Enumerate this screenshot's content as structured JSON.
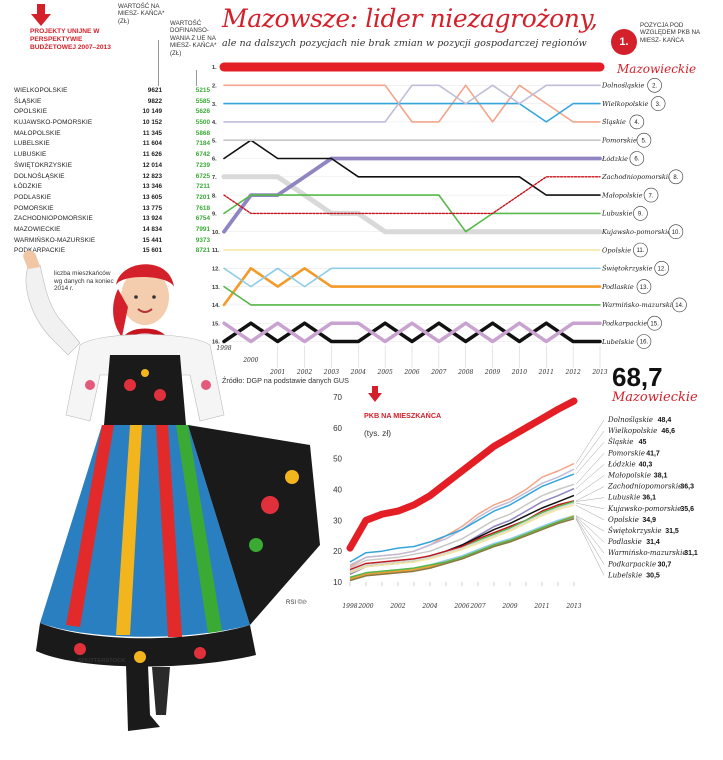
{
  "headline": "Mazowsze: lider niezagrożony,",
  "subheadline": "ale na dalszych pozycjach nie brak zmian w pozycji gospodarczej regionów",
  "legend": {
    "badge": "1.",
    "text": "POZYCJA POD WZGLĘDEM PKB NA MIESZ- KAŃCA"
  },
  "table": {
    "title": "PROJEKTY UNIJNE W PERSPEKTYWIE BUDŻETOWEJ 2007–2013",
    "col1_header": "WARTOŚĆ NA MIESZ- KAŃCA* (ZŁ)",
    "col2_header": "WARTOŚĆ DOFINANSO- WANIA Z UE NA MIESZ- KAŃCA* (ZŁ)",
    "rows": [
      {
        "name": "WIELKOPOLSKIE",
        "value": "9621",
        "eu": "5215"
      },
      {
        "name": "ŚLĄSKIE",
        "value": "9822",
        "eu": "5585"
      },
      {
        "name": "OPOLSKIE",
        "value": "10 149",
        "eu": "5626"
      },
      {
        "name": "KUJAWSKO-POMORSKIE",
        "value": "10 152",
        "eu": "5500"
      },
      {
        "name": "MAŁOPOLSKIE",
        "value": "11 345",
        "eu": "5868"
      },
      {
        "name": "LUBELSKIE",
        "value": "11 604",
        "eu": "7184"
      },
      {
        "name": "LUBUSKIE",
        "value": "11 626",
        "eu": "6742"
      },
      {
        "name": "ŚWIĘTOKRZYSKIE",
        "value": "12 014",
        "eu": "7239"
      },
      {
        "name": "DOLNOŚLĄSKIE",
        "value": "12 823",
        "eu": "6725"
      },
      {
        "name": "ŁÓDZKIE",
        "value": "13 346",
        "eu": "7211"
      },
      {
        "name": "PODLASKIE",
        "value": "13 605",
        "eu": "7201"
      },
      {
        "name": "POMORSKIE",
        "value": "13 775",
        "eu": "7618"
      },
      {
        "name": "ZACHODNIOPOMORSKIE",
        "value": "13 924",
        "eu": "6754"
      },
      {
        "name": "MAZOWIECKIE",
        "value": "14 834",
        "eu": "7991"
      },
      {
        "name": "WARMIŃSKO-MAZURSKIE",
        "value": "15 441",
        "eu": "9373"
      },
      {
        "name": "PODKARPACKIE",
        "value": "15 601",
        "eu": "8721"
      }
    ],
    "note_star": "*",
    "note": "liczba mieszkańców wg danych na koniec 2014 r."
  },
  "credits": {
    "photo": "SHUTTERSTOCK",
    "graphic": "RSI ©℗"
  },
  "colors": {
    "red": "#d4202a",
    "green": "#3aaa35"
  },
  "chart_data": [
    {
      "type": "line",
      "years": [
        "1998",
        "2000",
        "2001",
        "2002",
        "2003",
        "2004",
        "2005",
        "2006",
        "2007",
        "2008",
        "2009",
        "2010",
        "2011",
        "2012",
        "2013"
      ],
      "ranks": [
        "1.",
        "2.",
        "3.",
        "4.",
        "5.",
        "6.",
        "7.",
        "8.",
        "9.",
        "10.",
        "11.",
        "12.",
        "13.",
        "14.",
        "15.",
        "16."
      ],
      "source": "Źródło: DGP na podstawie danych GUS",
      "series": [
        {
          "name": "Mazowieckie",
          "final_rank": "1.",
          "color": "#e31e24",
          "width": 9,
          "values": [
            1,
            1,
            1,
            1,
            1,
            1,
            1,
            1,
            1,
            1,
            1,
            1,
            1,
            1,
            1
          ]
        },
        {
          "name": "Dolnośląskie",
          "final_rank": "2.",
          "color": "#c0bdd9",
          "width": 1.6,
          "values": [
            4,
            4,
            4,
            4,
            4,
            4,
            4,
            2,
            2,
            3,
            2,
            3,
            2,
            2,
            2
          ]
        },
        {
          "name": "Wielkopolskie",
          "final_rank": "3.",
          "color": "#34a4dc",
          "width": 1.6,
          "values": [
            3,
            3,
            3,
            3,
            3,
            3,
            3,
            3,
            3,
            3,
            3,
            3,
            4,
            3,
            3
          ]
        },
        {
          "name": "Śląskie",
          "final_rank": "4.",
          "color": "#f2a58a",
          "width": 1.6,
          "values": [
            2,
            2,
            2,
            2,
            2,
            2,
            2,
            4,
            4,
            2,
            4,
            2,
            3,
            4,
            4
          ]
        },
        {
          "name": "Pomorskie",
          "final_rank": "5.",
          "color": "#c8c8c8",
          "width": 1.6,
          "values": [
            5,
            5,
            5,
            5,
            5,
            5,
            5,
            5,
            5,
            5,
            5,
            5,
            5,
            5,
            5
          ]
        },
        {
          "name": "Łódzkie",
          "final_rank": "6.",
          "color": "#9085c2",
          "width": 3.8,
          "values": [
            10,
            8,
            8,
            7,
            6,
            6,
            6,
            6,
            6,
            6,
            6,
            6,
            6,
            6,
            6
          ]
        },
        {
          "name": "Małopolskie",
          "final_rank": "7.",
          "color": "#111111",
          "width": 1.6,
          "values": [
            6,
            5,
            6,
            6,
            6,
            7,
            7,
            7,
            7,
            7,
            7,
            7,
            8,
            8,
            8
          ]
        },
        {
          "name": "Zachodniopomorskie",
          "final_rank": "8.",
          "color": "#c8141e",
          "width": 1.4,
          "dash": "2,1.5",
          "values": [
            8,
            9,
            9,
            9,
            9,
            9,
            9,
            9,
            9,
            9,
            9,
            8,
            7,
            7,
            7
          ]
        },
        {
          "name": "Lubuskie",
          "final_rank": "9.",
          "color": "#57b947",
          "width": 1.6,
          "values": [
            9,
            8,
            8,
            8,
            8,
            8,
            8,
            8,
            8,
            10,
            9,
            9,
            9,
            9,
            9
          ]
        },
        {
          "name": "Kujawsko-pomorskie",
          "final_rank": "10.",
          "color": "#d9d9d9",
          "width": 5,
          "values": [
            7,
            7,
            7,
            8,
            9,
            9,
            10,
            10,
            10,
            10,
            10,
            10,
            10,
            10,
            10
          ]
        },
        {
          "name": "Opolskie",
          "final_rank": "11.",
          "color": "#f2e6a0",
          "width": 1.6,
          "values": [
            11,
            11,
            11,
            11,
            11,
            11,
            11,
            11,
            11,
            11,
            11,
            11,
            11,
            11,
            11
          ]
        },
        {
          "name": "Świętokrzyskie",
          "final_rank": "12.",
          "color": "#8dcde8",
          "width": 1.6,
          "values": [
            12,
            13,
            12,
            13,
            12,
            12,
            12,
            12,
            12,
            12,
            12,
            12,
            12,
            12,
            12
          ]
        },
        {
          "name": "Podlaskie",
          "final_rank": "13.",
          "color": "#f39a28",
          "width": 2.6,
          "values": [
            14,
            12,
            13,
            12,
            13,
            13,
            13,
            13,
            13,
            13,
            13,
            13,
            13,
            13,
            13
          ]
        },
        {
          "name": "Warmińsko-mazurskie",
          "final_rank": "14.",
          "color": "#56b547",
          "width": 1.6,
          "values": [
            13,
            14,
            14,
            14,
            14,
            14,
            14,
            14,
            14,
            14,
            14,
            14,
            14,
            14,
            14
          ]
        },
        {
          "name": "Podkarpackie",
          "final_rank": "15.",
          "color": "#c9a3cf",
          "width": 3.5,
          "values": [
            15,
            16,
            15,
            16,
            15,
            15,
            16,
            15,
            16,
            15,
            16,
            15,
            16,
            15,
            15
          ]
        },
        {
          "name": "Lubelskie",
          "final_rank": "16.",
          "color": "#111111",
          "width": 3.5,
          "values": [
            16,
            15,
            16,
            15,
            16,
            16,
            15,
            16,
            15,
            16,
            15,
            16,
            15,
            16,
            16
          ]
        }
      ]
    },
    {
      "type": "line",
      "title": "PKB NA MIESZKAŃCA",
      "ylabel": "(tys. zł)",
      "x": [
        "1998",
        "2000",
        "2001",
        "2002",
        "2003",
        "2004",
        "2005",
        "2006",
        "2007",
        "2008",
        "2009",
        "2010",
        "2011",
        "2012",
        "2013"
      ],
      "x_tick_labels": [
        "1998",
        "2000",
        "2002",
        "2004",
        "2006",
        "2007",
        "2009",
        "2011",
        "2013"
      ],
      "y_ticks": [
        "10",
        "20",
        "30",
        "40",
        "50",
        "60",
        "70"
      ],
      "ylim": [
        10,
        70
      ],
      "highlight": {
        "value": "68,7",
        "name": "Mazowieckie"
      },
      "series": [
        {
          "name": "Mazowieckie",
          "color": "#e31e24",
          "width": 7,
          "values": [
            21,
            30,
            32,
            33,
            35,
            38,
            42,
            46,
            50,
            54,
            57,
            60,
            63,
            66,
            68.7
          ]
        },
        {
          "name": "Dolnośląskie",
          "value": "48,4",
          "color": "#f2a58a",
          "values": [
            15,
            18,
            18.5,
            19,
            20,
            22,
            25,
            28,
            32,
            35,
            37,
            40,
            44,
            46,
            48.4
          ]
        },
        {
          "name": "Wielkopolskie",
          "value": "46,6",
          "color": "#c0bdd9",
          "values": [
            15.5,
            18,
            18.5,
            19,
            20,
            22,
            24,
            27,
            31,
            34,
            36,
            39,
            42,
            44,
            46.6
          ]
        },
        {
          "name": "Śląskie",
          "value": "45",
          "color": "#34a4dc",
          "values": [
            16.5,
            19.5,
            20,
            21,
            21.5,
            23,
            25,
            27,
            30,
            33,
            35,
            38,
            41,
            43,
            45
          ]
        },
        {
          "name": "Pomorskie",
          "value": "41,7",
          "color": "#c8c8c8",
          "values": [
            14.5,
            17,
            17.5,
            18,
            19,
            20,
            22,
            24,
            27,
            30,
            32,
            35,
            38,
            40,
            41.7
          ]
        },
        {
          "name": "Łódzkie",
          "value": "40,3",
          "color": "#9085c2",
          "values": [
            12.5,
            15,
            15.5,
            16,
            17,
            18,
            20,
            22,
            25,
            28,
            30,
            33,
            36,
            38,
            40.3
          ]
        },
        {
          "name": "Małopolskie",
          "value": "38,1",
          "color": "#111111",
          "values": [
            13,
            15.5,
            16,
            16.5,
            17,
            18.5,
            20,
            22,
            24.5,
            27,
            29,
            31.5,
            34,
            36,
            38.1
          ]
        },
        {
          "name": "Zachodniopomorskie",
          "value": "36,3",
          "color": "#c8141e",
          "values": [
            14,
            16,
            16.5,
            17,
            17.5,
            18.5,
            20,
            21.5,
            24,
            26,
            28,
            30,
            33,
            35,
            36.3
          ]
        },
        {
          "name": "Lubuskie",
          "value": "36,1",
          "color": "#57b947",
          "values": [
            13.5,
            15.5,
            16,
            16.5,
            17,
            18,
            19.5,
            21,
            23.5,
            25.5,
            27.5,
            30,
            32.5,
            34.5,
            36.1
          ]
        },
        {
          "name": "Kujawsko-pomorskie",
          "value": "35,6",
          "color": "#d9d9d9",
          "values": [
            13.5,
            15.5,
            16,
            16.5,
            17,
            18,
            19.5,
            21,
            23,
            25,
            27,
            29.5,
            32,
            34,
            35.6
          ]
        },
        {
          "name": "Opolskie",
          "value": "34,9",
          "color": "#f2e6a0",
          "values": [
            13,
            15,
            15.5,
            16,
            16.5,
            17.5,
            19,
            20.5,
            22.5,
            24.5,
            26.5,
            29,
            31.5,
            33.5,
            34.9
          ]
        },
        {
          "name": "Świętokrzyskie",
          "value": "31,5",
          "color": "#8dcde8",
          "values": [
            11.5,
            13,
            13.5,
            14,
            14.5,
            15.5,
            17,
            18.5,
            20.5,
            22.5,
            24,
            26,
            28,
            30,
            31.5
          ]
        },
        {
          "name": "Podlaskie",
          "value": "31,4",
          "color": "#f39a28",
          "values": [
            11,
            12.5,
            13,
            13.5,
            14,
            15,
            16.5,
            18,
            20,
            22,
            23.5,
            25.5,
            27.5,
            29.5,
            31.4
          ]
        },
        {
          "name": "Warmińsko-mazurskie",
          "value": "31,1",
          "color": "#56b547",
          "values": [
            11.5,
            13,
            13.5,
            14,
            14.5,
            15.5,
            16.5,
            18,
            20,
            22,
            23.5,
            25.5,
            27.5,
            29.5,
            31.1
          ]
        },
        {
          "name": "Podkarpackie",
          "value": "30,7",
          "color": "#c9a3cf",
          "values": [
            10.5,
            12,
            12.5,
            13,
            13.5,
            14.5,
            16,
            17.5,
            19.5,
            21.5,
            23,
            25,
            27,
            29,
            30.7
          ]
        },
        {
          "name": "Lubelskie",
          "value": "30,5",
          "color": "#8a7a3a",
          "values": [
            10.5,
            12,
            12.5,
            13,
            13.5,
            14.5,
            16,
            17.5,
            19.5,
            21.5,
            23,
            25,
            27,
            29,
            30.5
          ]
        }
      ]
    }
  ]
}
